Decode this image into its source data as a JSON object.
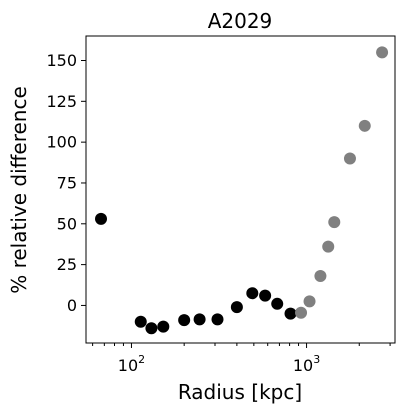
{
  "chart_data": {
    "type": "scatter",
    "title": "A2029",
    "xlabel": "Radius [kpc]",
    "ylabel": "% relative difference",
    "x_scale": "log",
    "xlim": [
      55,
      3200
    ],
    "ylim": [
      -23,
      165
    ],
    "x_major_ticks": [
      {
        "value": 100,
        "base": "10",
        "exp": "2"
      },
      {
        "value": 1000,
        "base": "10",
        "exp": "3"
      }
    ],
    "x_minor_ticks": [
      60,
      70,
      80,
      90,
      200,
      300,
      400,
      500,
      600,
      700,
      800,
      900,
      2000,
      3000
    ],
    "y_ticks": [
      0,
      25,
      50,
      75,
      100,
      125,
      150
    ],
    "grid": false,
    "series": [
      {
        "color": "#000000",
        "points": [
          {
            "x": 67,
            "y": 53
          },
          {
            "x": 113,
            "y": -10
          },
          {
            "x": 130,
            "y": -14
          },
          {
            "x": 152,
            "y": -13
          },
          {
            "x": 200,
            "y": -9
          },
          {
            "x": 245,
            "y": -8.5
          },
          {
            "x": 310,
            "y": -8.5
          },
          {
            "x": 400,
            "y": -1
          },
          {
            "x": 490,
            "y": 7.5
          },
          {
            "x": 580,
            "y": 6
          },
          {
            "x": 680,
            "y": 1
          },
          {
            "x": 810,
            "y": -5
          }
        ]
      },
      {
        "color": "#808080",
        "points": [
          {
            "x": 930,
            "y": -4.5
          },
          {
            "x": 1040,
            "y": 2.5
          },
          {
            "x": 1200,
            "y": 18
          },
          {
            "x": 1330,
            "y": 36
          },
          {
            "x": 1440,
            "y": 51
          },
          {
            "x": 1770,
            "y": 90
          },
          {
            "x": 2150,
            "y": 110
          },
          {
            "x": 2700,
            "y": 155
          }
        ]
      }
    ]
  }
}
